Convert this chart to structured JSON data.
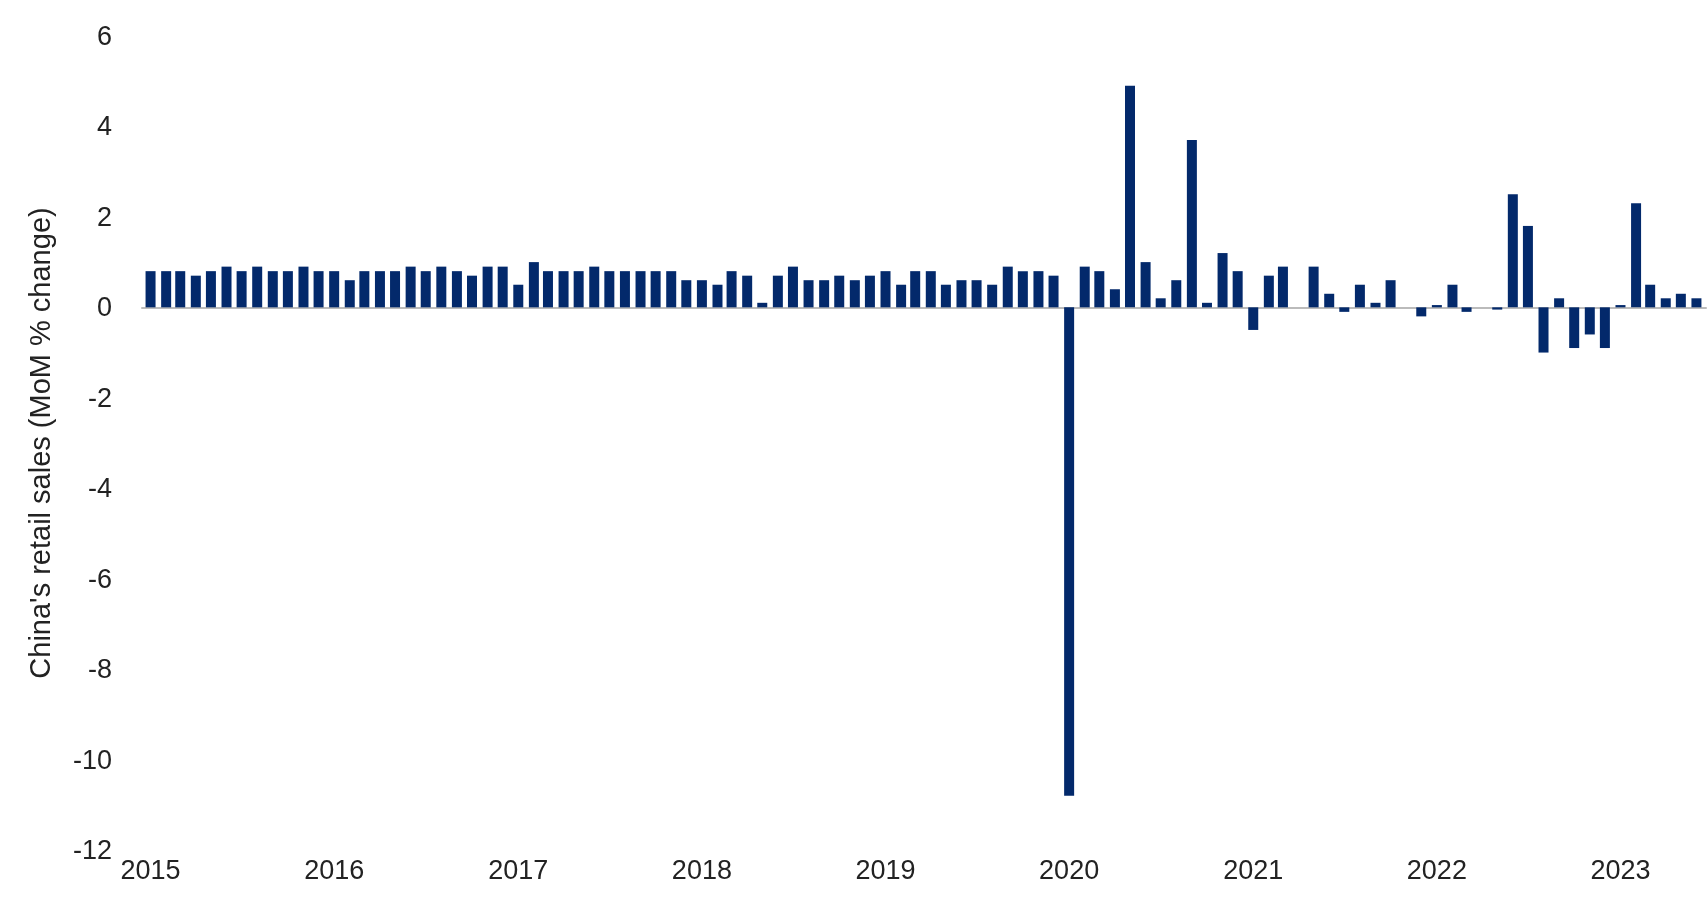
{
  "chart_data": {
    "type": "bar",
    "ylabel": "China's retail sales (MoM % change)",
    "x": [
      "2015-01",
      "2015-02",
      "2015-03",
      "2015-04",
      "2015-05",
      "2015-06",
      "2015-07",
      "2015-08",
      "2015-09",
      "2015-10",
      "2015-11",
      "2015-12",
      "2016-01",
      "2016-02",
      "2016-03",
      "2016-04",
      "2016-05",
      "2016-06",
      "2016-07",
      "2016-08",
      "2016-09",
      "2016-10",
      "2016-11",
      "2016-12",
      "2017-01",
      "2017-02",
      "2017-03",
      "2017-04",
      "2017-05",
      "2017-06",
      "2017-07",
      "2017-08",
      "2017-09",
      "2017-10",
      "2017-11",
      "2017-12",
      "2018-01",
      "2018-02",
      "2018-03",
      "2018-04",
      "2018-05",
      "2018-06",
      "2018-07",
      "2018-08",
      "2018-09",
      "2018-10",
      "2018-11",
      "2018-12",
      "2019-01",
      "2019-02",
      "2019-03",
      "2019-04",
      "2019-05",
      "2019-06",
      "2019-07",
      "2019-08",
      "2019-09",
      "2019-10",
      "2019-11",
      "2019-12",
      "2020-01",
      "2020-02",
      "2020-03",
      "2020-04",
      "2020-05",
      "2020-06",
      "2020-07",
      "2020-08",
      "2020-09",
      "2020-10",
      "2020-11",
      "2020-12",
      "2021-01",
      "2021-02",
      "2021-03",
      "2021-04",
      "2021-05",
      "2021-06",
      "2021-07",
      "2021-08",
      "2021-09",
      "2021-10",
      "2021-11",
      "2021-12",
      "2022-01",
      "2022-02",
      "2022-03",
      "2022-04",
      "2022-05",
      "2022-06",
      "2022-07",
      "2022-08",
      "2022-09",
      "2022-10",
      "2022-11",
      "2022-12",
      "2023-01",
      "2023-02",
      "2023-03",
      "2023-04",
      "2023-05",
      "2023-06"
    ],
    "values": [
      0.8,
      0.8,
      0.8,
      0.7,
      0.8,
      0.9,
      0.8,
      0.9,
      0.8,
      0.8,
      0.9,
      0.8,
      0.8,
      0.6,
      0.8,
      0.8,
      0.8,
      0.9,
      0.8,
      0.9,
      0.8,
      0.7,
      0.9,
      0.9,
      0.5,
      1.0,
      0.8,
      0.8,
      0.8,
      0.9,
      0.8,
      0.8,
      0.8,
      0.8,
      0.8,
      0.6,
      0.6,
      0.5,
      0.8,
      0.7,
      0.1,
      0.7,
      0.9,
      0.6,
      0.6,
      0.7,
      0.6,
      0.7,
      0.8,
      0.5,
      0.8,
      0.8,
      0.5,
      0.6,
      0.6,
      0.5,
      0.9,
      0.8,
      0.8,
      0.7,
      -10.8,
      0.9,
      0.8,
      0.4,
      4.9,
      1.0,
      0.2,
      0.6,
      3.7,
      0.1,
      1.2,
      0.8,
      -0.5,
      0.7,
      0.9,
      0,
      0.9,
      0.3,
      -0.1,
      0.5,
      0.1,
      0.6,
      0,
      -0.2,
      0.05,
      0.5,
      -0.1,
      0,
      -0.05,
      2.5,
      1.8,
      -1.0,
      0.2,
      -0.9,
      -0.6,
      -0.9,
      0.05,
      2.3,
      0.5,
      0.2,
      0.3,
      0.2
    ],
    "color": "#03296b",
    "xlim": [
      "2014-12-15",
      "2023-06-20"
    ],
    "xticks": [
      "2015",
      "2016",
      "2017",
      "2018",
      "2019",
      "2020",
      "2021",
      "2022",
      "2023"
    ],
    "yticks": [
      -12,
      -10,
      -8,
      -6,
      -4,
      -2,
      0,
      2,
      4,
      6
    ],
    "ylim": [
      -12,
      6
    ]
  }
}
